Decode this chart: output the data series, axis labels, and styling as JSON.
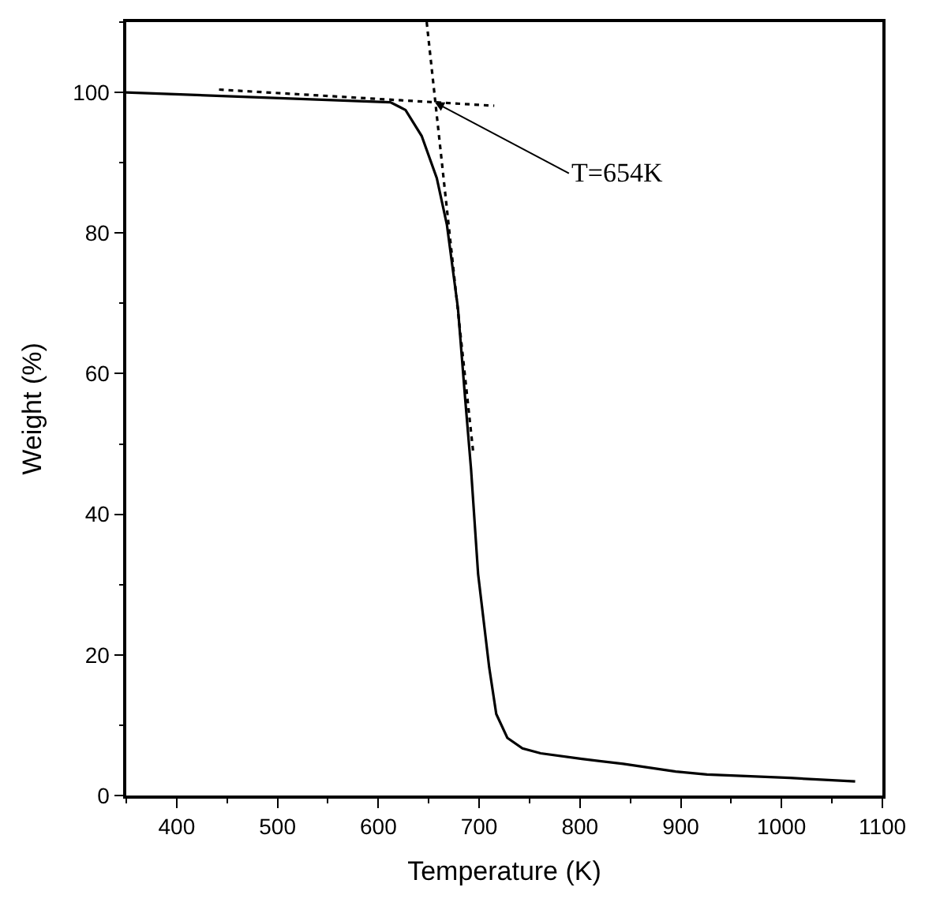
{
  "chart_data": {
    "type": "line",
    "xlabel": "Temperature (K)",
    "ylabel": "Weight (%)",
    "xlim": [
      350,
      1100
    ],
    "xticks": [
      400,
      500,
      600,
      700,
      800,
      900,
      1000,
      1100
    ],
    "ylim": [
      0,
      110
    ],
    "yticks": [
      0,
      20,
      40,
      60,
      80,
      100
    ],
    "marker": "none",
    "series": [
      {
        "color": "#000000",
        "line_style": "solid",
        "x": [
          350,
          612,
          627,
          643,
          658,
          668,
          679,
          686,
          692,
          699,
          710,
          717,
          728,
          743,
          761,
          802,
          843,
          895,
          926,
          1008,
          1073
        ],
        "values": [
          100,
          98.6,
          97.5,
          93.8,
          87.8,
          81.2,
          69.3,
          56.7,
          46.4,
          31.5,
          18.2,
          11.6,
          8.2,
          6.7,
          6.0,
          5.2,
          4.5,
          3.4,
          3.0,
          2.5,
          2.0
        ]
      },
      {
        "color": "#000000",
        "line_style": "dotted",
        "x": [
          442,
          715
        ],
        "values": [
          100.4,
          98.1
        ]
      },
      {
        "color": "#000000",
        "line_style": "dotted",
        "x": [
          648,
          694
        ],
        "values": [
          110,
          49
        ]
      }
    ],
    "annotations": [
      {
        "text": "T=654K",
        "x": 656,
        "y": 98.6
      }
    ]
  }
}
